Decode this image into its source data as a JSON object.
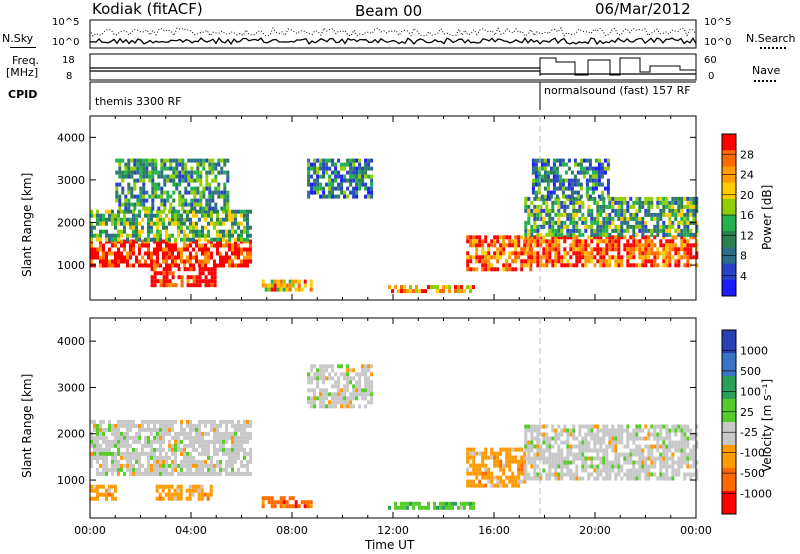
{
  "header": {
    "station": "Kodiak (fitACF)",
    "beam": "Beam 00",
    "date": "06/Mar/2012"
  },
  "top_panels": {
    "nsky_label": "N.Sky",
    "nsky_ticks": [
      "10^5",
      "10^0"
    ],
    "nsearch_label": "N.Search",
    "nsearch_ticks": [
      "10^5",
      "10^0"
    ],
    "freq_label": "Freq.",
    "freq_unit": "[MHz]",
    "freq_ticks": [
      "18",
      "8"
    ],
    "nave_label": "Nave",
    "nave_ticks": [
      "60",
      "0"
    ],
    "cpid_label": "CPID",
    "cpid_segments": [
      "themis 3300 RF",
      "normalsound (fast) 157 RF"
    ]
  },
  "chart_data": [
    {
      "type": "heatmap",
      "name": "power",
      "ylabel": "Slant Range [km]",
      "xlabel": "",
      "xlim": [
        "00:00",
        "24:00"
      ],
      "ylim": [
        180,
        4500
      ],
      "yticks": [
        "1000",
        "2000",
        "3000",
        "4000"
      ],
      "colorbar_label": "Power [dB]",
      "colorbar_ticks": [
        "28",
        "24",
        "20",
        "16",
        "12",
        "8",
        "4"
      ],
      "colorbar_colors": [
        "#ff0000",
        "#ff6a00",
        "#ff9a00",
        "#ffcc00",
        "#8fce00",
        "#22b14c",
        "#2c7f4f",
        "#2d6d8a",
        "#2842c8",
        "#1c1cff"
      ],
      "range_gates": [
        {
          "t0": 0.0,
          "t1": 6.3,
          "r0": 1000,
          "r1": 1600,
          "level": 0.95
        },
        {
          "t0": 0.0,
          "t1": 6.3,
          "r0": 1600,
          "r1": 2300,
          "level": 0.45
        },
        {
          "t0": 1.0,
          "t1": 5.5,
          "r0": 2300,
          "r1": 3500,
          "level": 0.35
        },
        {
          "t0": 2.4,
          "t1": 5.0,
          "r0": 550,
          "r1": 950,
          "level": 1.0
        },
        {
          "t0": 6.8,
          "t1": 8.8,
          "r0": 470,
          "r1": 660,
          "level": 0.7
        },
        {
          "t0": 8.6,
          "t1": 11.2,
          "r0": 2600,
          "r1": 3500,
          "level": 0.3
        },
        {
          "t0": 11.8,
          "t1": 15.2,
          "r0": 370,
          "r1": 530,
          "level": 0.75
        },
        {
          "t0": 14.9,
          "t1": 17.4,
          "r0": 900,
          "r1": 1700,
          "level": 0.85
        },
        {
          "t0": 17.2,
          "t1": 24.0,
          "r0": 1000,
          "r1": 1700,
          "level": 0.9
        },
        {
          "t0": 17.2,
          "t1": 24.0,
          "r0": 1700,
          "r1": 2600,
          "level": 0.4
        },
        {
          "t0": 17.5,
          "t1": 20.5,
          "r0": 2600,
          "r1": 3500,
          "level": 0.3
        }
      ]
    },
    {
      "type": "heatmap",
      "name": "velocity",
      "ylabel": "Slant Range [km]",
      "xlabel": "Time UT",
      "xlim": [
        "00:00",
        "24:00"
      ],
      "ylim": [
        180,
        4500
      ],
      "xticks": [
        "00:00",
        "04:00",
        "08:00",
        "12:00",
        "16:00",
        "20:00",
        "00:00"
      ],
      "yticks": [
        "1000",
        "2000",
        "3000",
        "4000"
      ],
      "colorbar_label": "Velocity [m s⁻¹]",
      "colorbar_ticks": [
        "1000",
        "500",
        "100",
        "25",
        "-25",
        "-100",
        "-500",
        "-1000"
      ],
      "colorbar_colors": [
        "#2b3fb5",
        "#3a74c4",
        "#2aa05a",
        "#55cc2a",
        "#c8c8c8",
        "#ff9a00",
        "#ff6a00",
        "#ff0000"
      ],
      "range_gates": [
        {
          "t0": 0.0,
          "t1": 6.3,
          "r0": 1100,
          "r1": 2300,
          "level": "ground"
        },
        {
          "t0": 0.0,
          "t1": 1.0,
          "r0": 600,
          "r1": 900,
          "level": "neg"
        },
        {
          "t0": 2.6,
          "t1": 4.8,
          "r0": 600,
          "r1": 900,
          "level": "neg"
        },
        {
          "t0": 6.8,
          "t1": 8.8,
          "r0": 450,
          "r1": 650,
          "level": "strongneg"
        },
        {
          "t0": 8.6,
          "t1": 11.2,
          "r0": 2600,
          "r1": 3500,
          "level": "ground"
        },
        {
          "t0": 11.8,
          "t1": 15.2,
          "r0": 370,
          "r1": 530,
          "level": "pos"
        },
        {
          "t0": 14.9,
          "t1": 17.2,
          "r0": 900,
          "r1": 1700,
          "level": "neg"
        },
        {
          "t0": 17.2,
          "t1": 24.0,
          "r0": 1000,
          "r1": 2200,
          "level": "ground"
        }
      ]
    }
  ]
}
